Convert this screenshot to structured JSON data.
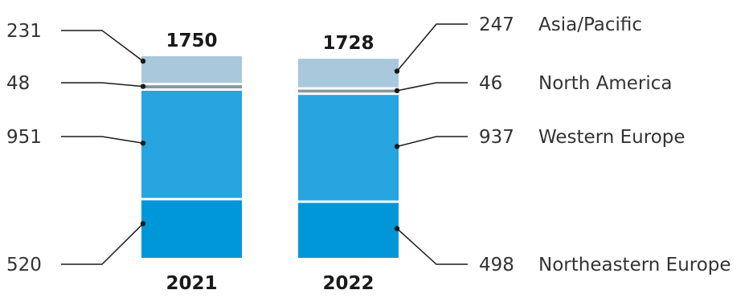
{
  "chart_data": {
    "type": "bar",
    "stacked": true,
    "categories": [
      "2021",
      "2022"
    ],
    "totals": [
      1750,
      1728
    ],
    "series": [
      {
        "name": "Northeastern Europe",
        "values": [
          520,
          498
        ],
        "color": "#0097d8"
      },
      {
        "name": "Western Europe",
        "values": [
          951,
          937
        ],
        "color": "#26a5e0"
      },
      {
        "name": "North America",
        "values": [
          48,
          46
        ],
        "color": "#8a959e"
      },
      {
        "name": "Asia/Pacific",
        "values": [
          231,
          247
        ],
        "color": "#a9c8db"
      }
    ],
    "title": "",
    "xlabel": "",
    "ylabel": "",
    "legend": "right",
    "grid": false
  }
}
